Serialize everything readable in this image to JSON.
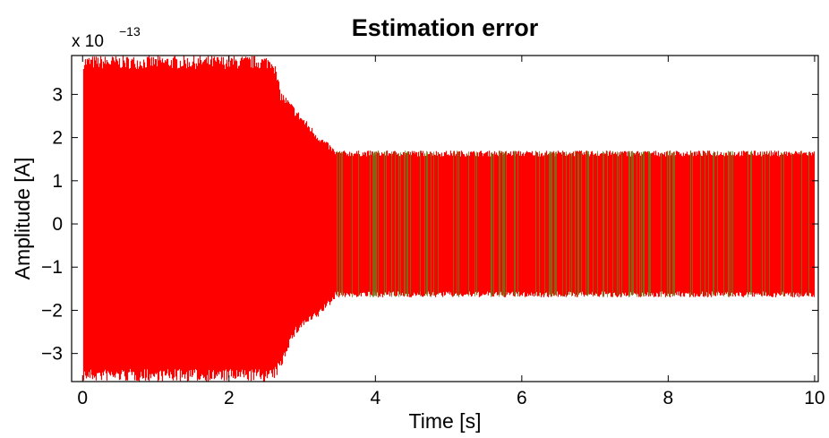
{
  "chart_data": {
    "type": "line",
    "title": "Estimation error",
    "xlabel": "Time [s]",
    "ylabel": "Amplitude [A]",
    "y_multiplier": {
      "base": "x 10",
      "exponent": "−13"
    },
    "xlim": [
      -0.15,
      10.05
    ],
    "ylim": [
      -3.65,
      3.9
    ],
    "x_ticks": [
      0,
      2,
      4,
      6,
      8,
      10
    ],
    "x_tick_labels": [
      "0",
      "2",
      "4",
      "6",
      "8",
      "10"
    ],
    "y_ticks": [
      -3,
      -2,
      -1,
      0,
      1,
      2,
      3
    ],
    "y_tick_labels": [
      "−3",
      "−2",
      "−1",
      "0",
      "1",
      "2",
      "3"
    ],
    "grid": false,
    "series": [
      {
        "color": "#ff0000",
        "envelope": {
          "x": [
            0.0,
            2.6,
            2.7,
            2.8,
            2.9,
            3.0,
            3.1,
            3.2,
            3.3,
            3.4,
            3.45,
            10.0
          ],
          "upper": [
            3.9,
            3.9,
            3.1,
            2.9,
            2.7,
            2.5,
            2.3,
            2.1,
            1.95,
            1.8,
            1.7,
            1.7
          ],
          "lower": [
            -3.65,
            -3.65,
            -3.4,
            -2.9,
            -2.6,
            -2.4,
            -2.3,
            -2.2,
            -2.0,
            -1.85,
            -1.7,
            -1.7
          ]
        }
      },
      {
        "color": "#6b7c1a",
        "envelope": {
          "x": [
            3.45,
            10.0
          ],
          "upper": [
            1.7,
            1.7
          ],
          "lower": [
            -1.7,
            -1.7
          ]
        }
      }
    ]
  }
}
